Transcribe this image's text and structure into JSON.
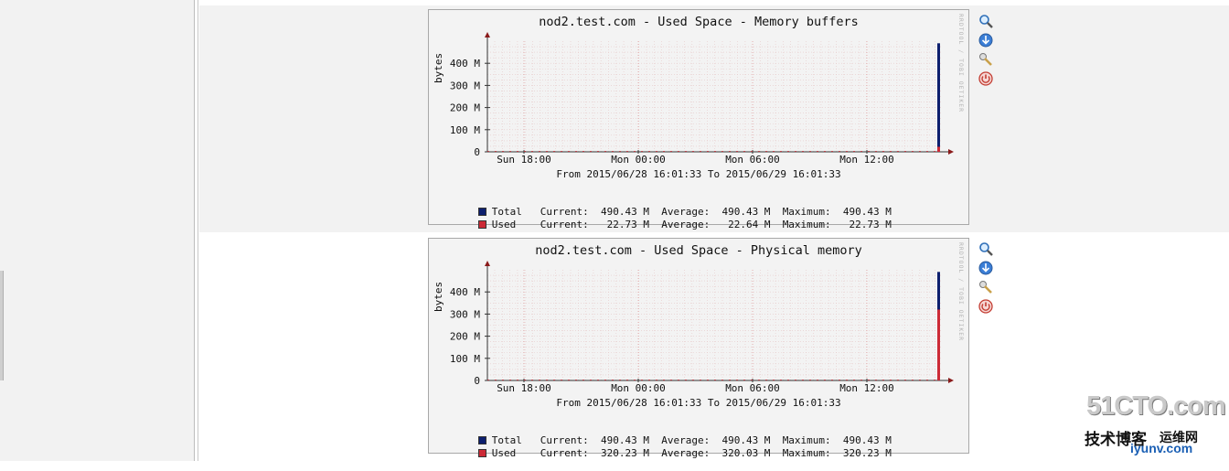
{
  "graphs": [
    {
      "title": "nod2.test.com - Used Space - Memory buffers",
      "rrdtool_credit": "RRDTOOL / TOBI OETIKER",
      "ylabel": "bytes",
      "time_range": "From 2015/06/28 16:01:33 To 2015/06/29 16:01:33",
      "legend": [
        {
          "name": "Total",
          "color": "#0d1f6e",
          "current": "490.43 M",
          "average": "490.43 M",
          "maximum": "490.43 M"
        },
        {
          "name": "Used",
          "color": "#cc2a36",
          "current": "22.73 M",
          "average": "22.64 M",
          "maximum": "22.73 M"
        }
      ]
    },
    {
      "title": "nod2.test.com - Used Space - Physical memory",
      "rrdtool_credit": "RRDTOOL / TOBI OETIKER",
      "ylabel": "bytes",
      "time_range": "From 2015/06/28 16:01:33 To 2015/06/29 16:01:33",
      "legend": [
        {
          "name": "Total",
          "color": "#0d1f6e",
          "current": "490.43 M",
          "average": "490.43 M",
          "maximum": "490.43 M"
        },
        {
          "name": "Used",
          "color": "#cc2a36",
          "current": "320.23 M",
          "average": "320.03 M",
          "maximum": "320.23 M"
        }
      ]
    }
  ],
  "labels": {
    "current": "Current:",
    "average": "Average:",
    "maximum": "Maximum:"
  },
  "actions": [
    {
      "name": "zoom",
      "icon": "magnifier-icon"
    },
    {
      "name": "download",
      "icon": "download-circle-icon"
    },
    {
      "name": "settings",
      "icon": "wrench-icon"
    },
    {
      "name": "delete",
      "icon": "stop-circle-icon"
    }
  ],
  "watermark": {
    "big": "51CTO.com",
    "small": "技术博客",
    "url": "iyunv.com",
    "right": "运维网"
  },
  "chart_data": [
    {
      "type": "area",
      "title": "nod2.test.com - Used Space - Memory buffers",
      "ylabel": "bytes",
      "ylim": [
        0,
        500
      ],
      "y_ticks": [
        "0",
        "100 M",
        "200 M",
        "300 M",
        "400 M"
      ],
      "x_ticks": [
        "Sun 18:00",
        "Mon 00:00",
        "Mon 06:00",
        "Mon 12:00"
      ],
      "series": [
        {
          "name": "Total",
          "color": "#0d1f6e",
          "last_value": 490.43
        },
        {
          "name": "Used",
          "color": "#cc2a36",
          "last_value": 22.73
        }
      ],
      "grid": true
    },
    {
      "type": "area",
      "title": "nod2.test.com - Used Space - Physical memory",
      "ylabel": "bytes",
      "ylim": [
        0,
        500
      ],
      "y_ticks": [
        "0",
        "100 M",
        "200 M",
        "300 M",
        "400 M"
      ],
      "x_ticks": [
        "Sun 18:00",
        "Mon 00:00",
        "Mon 06:00",
        "Mon 12:00"
      ],
      "series": [
        {
          "name": "Total",
          "color": "#0d1f6e",
          "last_value": 490.43
        },
        {
          "name": "Used",
          "color": "#cc2a36",
          "last_value": 320.23
        }
      ],
      "grid": true
    }
  ]
}
